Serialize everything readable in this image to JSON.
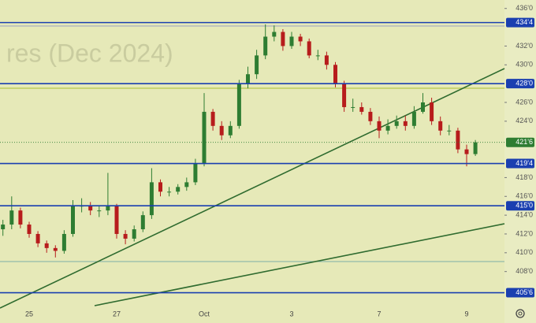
{
  "chart_data": {
    "type": "candlestick",
    "watermark": "res (Dec 2024)",
    "categories": [
      null,
      null,
      null,
      "25",
      null,
      null,
      null,
      null,
      null,
      null,
      null,
      null,
      null,
      "27",
      null,
      null,
      null,
      null,
      null,
      null,
      null,
      null,
      null,
      "Oct",
      null,
      null,
      null,
      null,
      null,
      null,
      null,
      null,
      null,
      "3",
      null,
      null,
      null,
      null,
      null,
      null,
      null,
      null,
      null,
      "7",
      null,
      null,
      null,
      null,
      null,
      null,
      null,
      null,
      null,
      "9",
      null
    ],
    "open": [
      412.5,
      413,
      414.5,
      413,
      412,
      411,
      410.5,
      410.2,
      412,
      415,
      415,
      414.5,
      414.5,
      415,
      412,
      411.5,
      412.5,
      414,
      417.5,
      416.5,
      416.5,
      417,
      417.5,
      419.5,
      425,
      423.5,
      422.5,
      423.5,
      428,
      429,
      431,
      433,
      433.5,
      432,
      433,
      432.5,
      431,
      431,
      430,
      428,
      425.5,
      425.5,
      425,
      424,
      423,
      423.5,
      424,
      423.5,
      425,
      426,
      424,
      423,
      423,
      421,
      420.5
    ],
    "high": [
      413.5,
      416,
      414.8,
      413.3,
      412.3,
      411.3,
      410.8,
      412.4,
      415.6,
      415.8,
      415.4,
      415,
      418.5,
      415.2,
      412.4,
      412.9,
      414.4,
      419,
      417.8,
      417,
      417.3,
      418,
      420,
      427,
      425.3,
      424,
      424,
      428.4,
      429.8,
      431.6,
      434.3,
      434.2,
      433.8,
      433.5,
      433.3,
      432.8,
      431.6,
      431.4,
      430.3,
      428.3,
      426.4,
      426,
      425.4,
      424.5,
      424.2,
      424.6,
      424.6,
      425.6,
      427,
      426.5,
      424.5,
      423.6,
      423.3,
      421.5,
      422
    ],
    "low": [
      411.8,
      412.5,
      412.6,
      411.6,
      410.6,
      410,
      409.5,
      409.9,
      411.7,
      414.3,
      414,
      413.8,
      414,
      411.5,
      410.9,
      411.2,
      412.2,
      413.6,
      416,
      416,
      416.2,
      416.6,
      417.2,
      419.2,
      423,
      422,
      422.2,
      423.2,
      427.5,
      428.5,
      430.6,
      432.5,
      431.5,
      431.7,
      432,
      430.7,
      430.5,
      429.5,
      427.6,
      425,
      425,
      424.7,
      423.6,
      422.2,
      422.6,
      423.2,
      423,
      423.2,
      424.8,
      423.6,
      422.5,
      422.5,
      420.6,
      419.2,
      420.3
    ],
    "close": [
      413,
      414.5,
      413,
      412,
      411,
      410.5,
      410.2,
      412,
      415,
      415,
      414.5,
      414.5,
      415,
      412,
      411.5,
      412.5,
      414,
      417.5,
      416.5,
      416.5,
      417,
      417.5,
      419.5,
      425,
      423.5,
      422.5,
      423.5,
      428,
      429,
      431,
      433,
      433.5,
      432,
      433,
      432.5,
      431,
      431,
      430,
      428,
      425.5,
      425.5,
      425,
      424,
      423,
      423.5,
      424,
      423.5,
      425,
      426,
      424,
      423,
      423,
      421,
      420.5,
      421.75
    ],
    "up_color": "#2e7d32",
    "down_color": "#b71c1c",
    "ylim": [
      404.2,
      436.9
    ],
    "yticks": [
      {
        "value": 436,
        "label": "436'0"
      },
      {
        "value": 432,
        "label": "432'0"
      },
      {
        "value": 430,
        "label": "430'0"
      },
      {
        "value": 426,
        "label": "426'0"
      },
      {
        "value": 424,
        "label": "424'0"
      },
      {
        "value": 418,
        "label": "418'0"
      },
      {
        "value": 416,
        "label": "416'0"
      },
      {
        "value": 414,
        "label": "414'0"
      },
      {
        "value": 412,
        "label": "412'0"
      },
      {
        "value": 410,
        "label": "410'0"
      },
      {
        "value": 408,
        "label": "408'0"
      }
    ],
    "levels": [
      {
        "value": 434.5,
        "label": "434'4"
      },
      {
        "value": 428,
        "label": "428'0"
      },
      {
        "value": 419.5,
        "label": "419'4"
      },
      {
        "value": 415,
        "label": "415'0"
      },
      {
        "value": 405.75,
        "label": "405'6"
      }
    ],
    "level_color": "#1a3fb0",
    "last_label": "421'6"
  }
}
